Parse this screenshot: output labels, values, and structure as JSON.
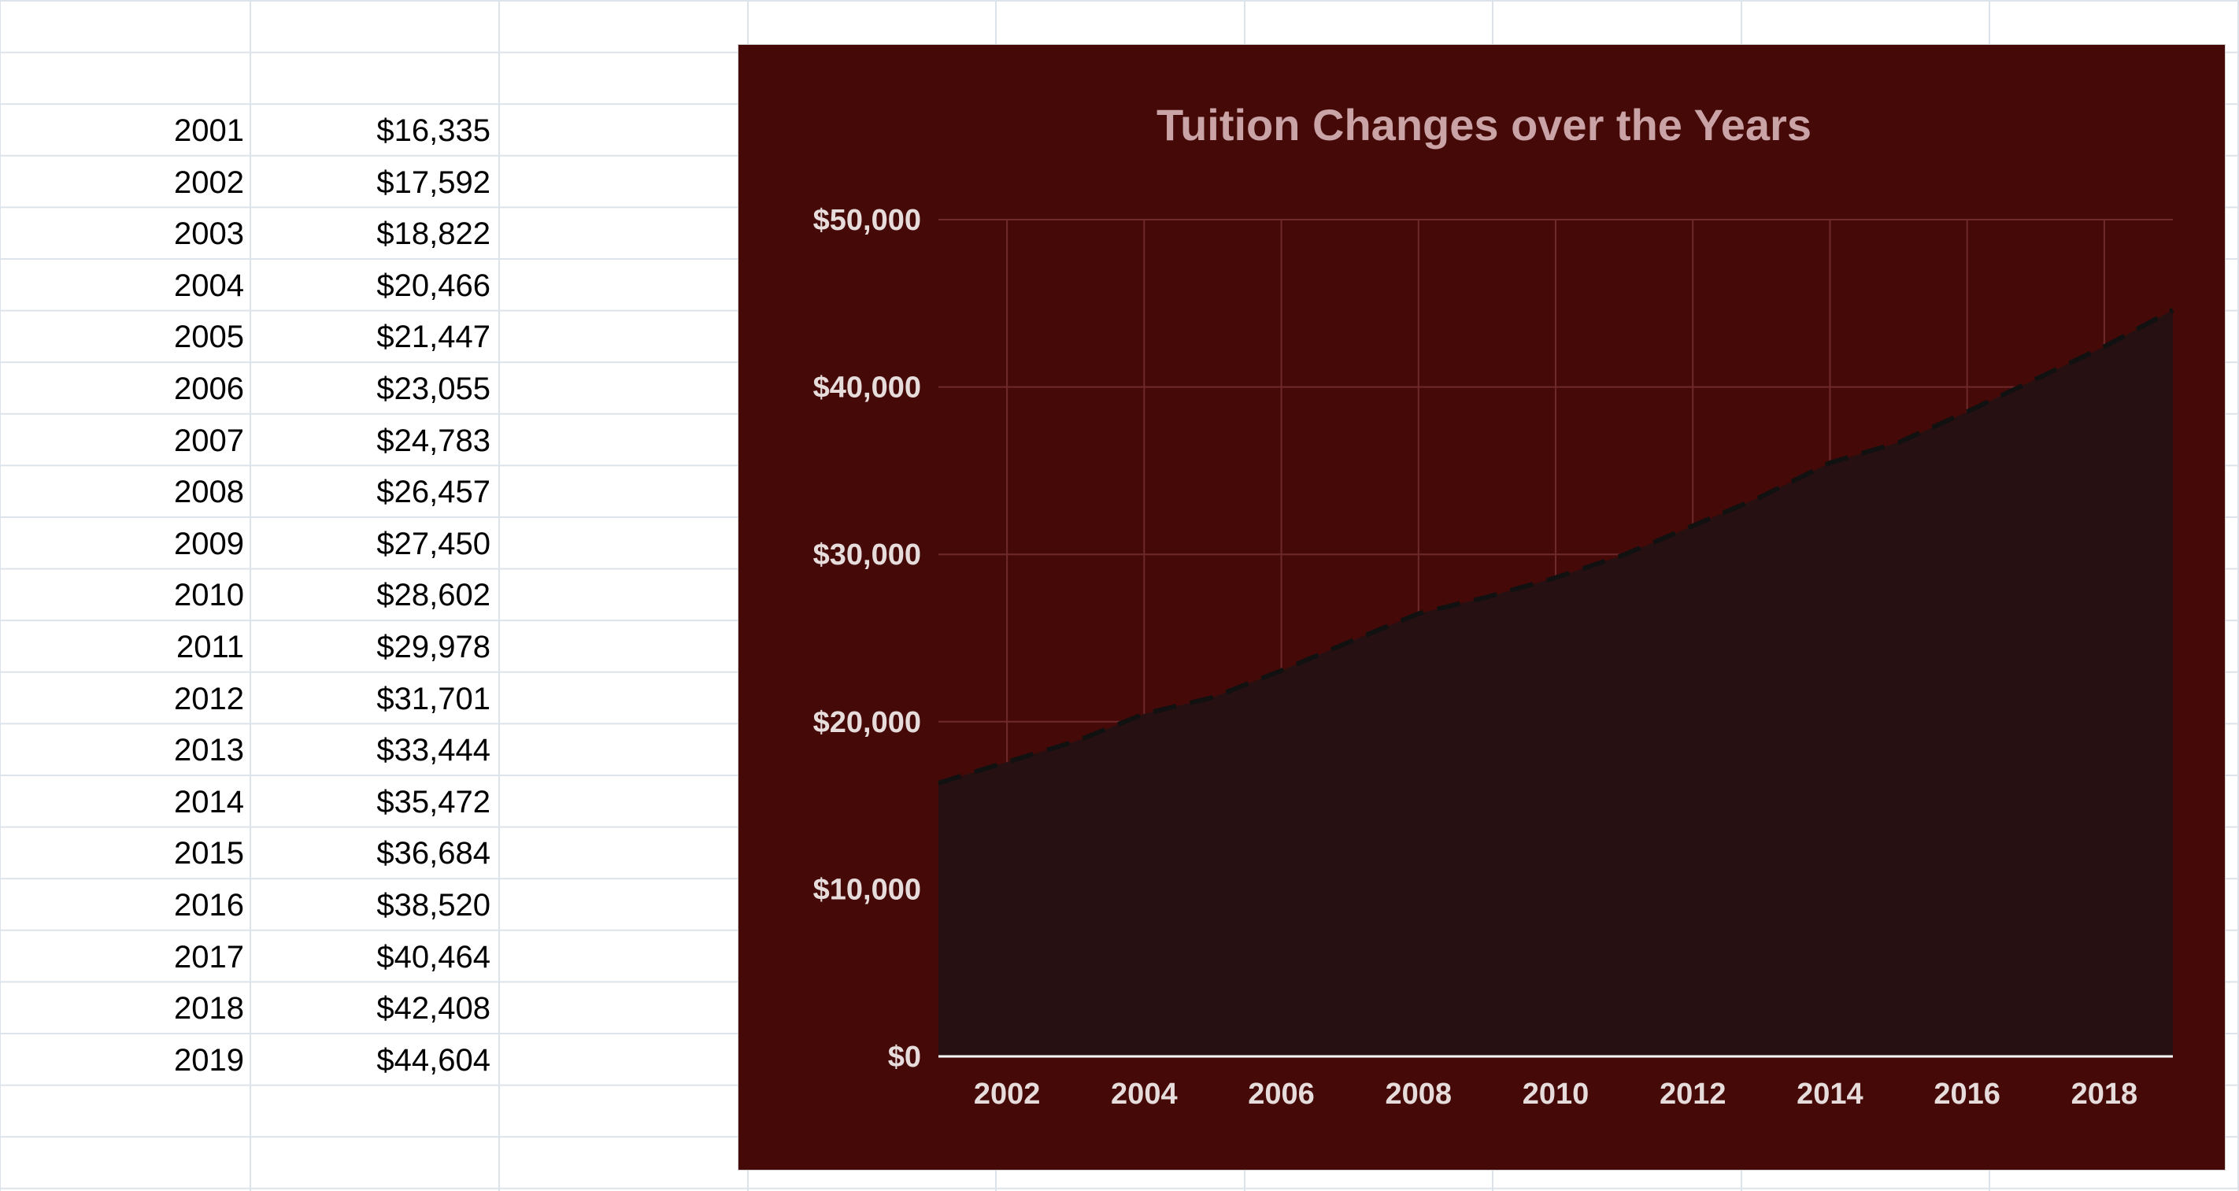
{
  "sheet": {
    "rows": [
      {
        "year": "2001",
        "amount": "$16,335"
      },
      {
        "year": "2002",
        "amount": "$17,592"
      },
      {
        "year": "2003",
        "amount": "$18,822"
      },
      {
        "year": "2004",
        "amount": "$20,466"
      },
      {
        "year": "2005",
        "amount": "$21,447"
      },
      {
        "year": "2006",
        "amount": "$23,055"
      },
      {
        "year": "2007",
        "amount": "$24,783"
      },
      {
        "year": "2008",
        "amount": "$26,457"
      },
      {
        "year": "2009",
        "amount": "$27,450"
      },
      {
        "year": "2010",
        "amount": "$28,602"
      },
      {
        "year": "2011",
        "amount": "$29,978"
      },
      {
        "year": "2012",
        "amount": "$31,701"
      },
      {
        "year": "2013",
        "amount": "$33,444"
      },
      {
        "year": "2014",
        "amount": "$35,472"
      },
      {
        "year": "2015",
        "amount": "$36,684"
      },
      {
        "year": "2016",
        "amount": "$38,520"
      },
      {
        "year": "2017",
        "amount": "$40,464"
      },
      {
        "year": "2018",
        "amount": "$42,408"
      },
      {
        "year": "2019",
        "amount": "$44,604"
      }
    ]
  },
  "chart_data": {
    "type": "area",
    "title": "Tuition Changes over the Years",
    "xlabel": "",
    "ylabel": "",
    "x": [
      2001,
      2002,
      2003,
      2004,
      2005,
      2006,
      2007,
      2008,
      2009,
      2010,
      2011,
      2012,
      2013,
      2014,
      2015,
      2016,
      2017,
      2018,
      2019
    ],
    "series": [
      {
        "values": [
          16335,
          17592,
          18822,
          20466,
          21447,
          23055,
          24783,
          26457,
          27450,
          28602,
          29978,
          31701,
          33444,
          35472,
          36684,
          38520,
          40464,
          42408,
          44604
        ],
        "line_style": "dashed"
      }
    ],
    "xlim": [
      2001,
      2019
    ],
    "ylim": [
      0,
      50000
    ],
    "x_ticks": [
      "2002",
      "2004",
      "2006",
      "2008",
      "2010",
      "2012",
      "2014",
      "2016",
      "2018"
    ],
    "y_ticks": [
      "$0",
      "$10,000",
      "$20,000",
      "$30,000",
      "$40,000",
      "$50,000"
    ],
    "grid": true,
    "legend": "none",
    "colors": {
      "background": "#450a08",
      "area_fill": "#261012",
      "line": "#111111",
      "grid": "#6e2a2a",
      "title": "#c9a3a6",
      "axis_text": "#e6dcdc"
    }
  }
}
